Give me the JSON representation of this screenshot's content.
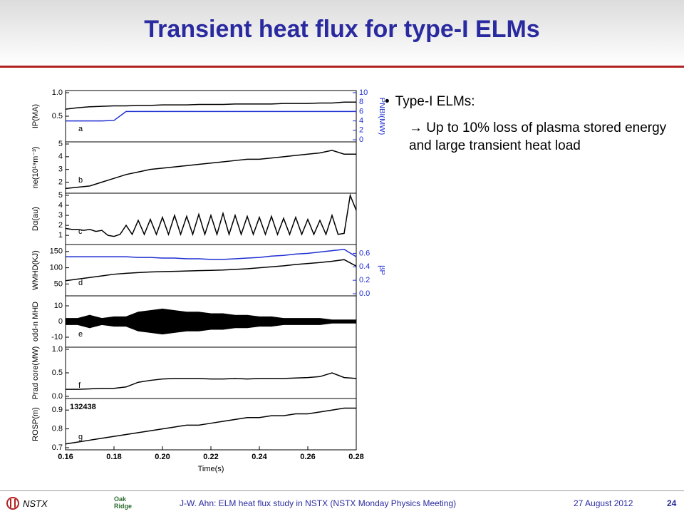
{
  "header": {
    "title": "Transient heat flux for type-I ELMs"
  },
  "bullets": [
    {
      "text": "Type-I ELMs:"
    },
    {
      "text": "→ Up to 10% loss of plasma stored energy and large transient heat load"
    }
  ],
  "footer": {
    "org": "NSTX",
    "logo": "Oak Ridge",
    "citation": "J-W. Ahn: ELM heat flux study in NSTX (NSTX Monday Physics Meeting)",
    "date": "27 August 2012",
    "page": "24"
  },
  "chart_data": [
    {
      "type": "line",
      "ylabel": "IP(MA)",
      "y2label": "PNBI(MW)",
      "annotation": "a",
      "xlim": [
        0.16,
        0.28
      ],
      "ylim": [
        0,
        1
      ],
      "yticks": [
        {
          "value": 1,
          "label": "1.0"
        },
        0.5
      ],
      "y2lim": [
        0,
        10
      ],
      "y2ticks": [
        10,
        8,
        6,
        4,
        2,
        0
      ],
      "x": [
        0.16,
        0.165,
        0.17,
        0.175,
        0.18,
        0.185,
        0.19,
        0.195,
        0.2,
        0.205,
        0.21,
        0.215,
        0.22,
        0.225,
        0.23,
        0.235,
        0.24,
        0.245,
        0.25,
        0.255,
        0.26,
        0.265,
        0.27,
        0.275,
        0.28
      ],
      "series": [
        {
          "color": "#000000",
          "values": [
            0.65,
            0.68,
            0.7,
            0.71,
            0.72,
            0.72,
            0.73,
            0.73,
            0.74,
            0.74,
            0.74,
            0.75,
            0.75,
            0.75,
            0.76,
            0.76,
            0.76,
            0.76,
            0.77,
            0.77,
            0.77,
            0.78,
            0.78,
            0.8,
            0.8
          ]
        },
        {
          "color": "#1f2fd0",
          "axis": "y2",
          "values": [
            4,
            4,
            4,
            4,
            4.1,
            6,
            6,
            6,
            6,
            6,
            6,
            6,
            6,
            6,
            6,
            6,
            6,
            6,
            6,
            6,
            6,
            6,
            6,
            6,
            6
          ]
        }
      ]
    },
    {
      "type": "line",
      "ylabel": "ne(10¹⁹m⁻³)",
      "annotation": "b",
      "xlim": [
        0.16,
        0.28
      ],
      "ylim": [
        1.3,
        5
      ],
      "yticks": [
        5,
        4,
        3,
        2
      ],
      "x": [
        0.16,
        0.165,
        0.17,
        0.175,
        0.18,
        0.185,
        0.19,
        0.195,
        0.2,
        0.205,
        0.21,
        0.215,
        0.22,
        0.225,
        0.23,
        0.235,
        0.24,
        0.245,
        0.25,
        0.255,
        0.26,
        0.265,
        0.27,
        0.275,
        0.28
      ],
      "series": [
        {
          "color": "#000000",
          "values": [
            1.5,
            1.6,
            1.7,
            2.0,
            2.3,
            2.6,
            2.8,
            3.0,
            3.1,
            3.2,
            3.3,
            3.4,
            3.5,
            3.6,
            3.7,
            3.8,
            3.8,
            3.9,
            4.0,
            4.1,
            4.2,
            4.3,
            4.5,
            4.2,
            4.2
          ]
        }
      ]
    },
    {
      "type": "line",
      "ylabel": "Dα(au)",
      "annotation": "c",
      "xlim": [
        0.16,
        0.28
      ],
      "ylim": [
        0.3,
        5
      ],
      "yticks": [
        5,
        4,
        3,
        2,
        1
      ],
      "x": [
        0.16,
        0.1625,
        0.165,
        0.1675,
        0.17,
        0.1725,
        0.175,
        0.1775,
        0.18,
        0.1825,
        0.185,
        0.1875,
        0.19,
        0.1925,
        0.195,
        0.1975,
        0.2,
        0.2025,
        0.205,
        0.2075,
        0.21,
        0.2125,
        0.215,
        0.2175,
        0.22,
        0.2225,
        0.225,
        0.2275,
        0.23,
        0.2325,
        0.235,
        0.2375,
        0.24,
        0.2425,
        0.245,
        0.2475,
        0.25,
        0.2525,
        0.255,
        0.2575,
        0.26,
        0.2625,
        0.265,
        0.2675,
        0.27,
        0.2725,
        0.275,
        0.2775,
        0.28
      ],
      "series": [
        {
          "color": "#000000",
          "values": [
            1.7,
            1.6,
            1.6,
            1.5,
            1.6,
            1.4,
            1.5,
            1.0,
            0.9,
            1.1,
            2.0,
            1.1,
            2.5,
            1.1,
            2.6,
            1.1,
            2.8,
            1.1,
            3.0,
            1.1,
            2.9,
            1.1,
            3.1,
            1.1,
            3.0,
            1.1,
            3.2,
            1.1,
            3.0,
            1.1,
            2.9,
            1.1,
            2.8,
            1.1,
            2.9,
            1.1,
            2.7,
            1.1,
            2.8,
            1.1,
            2.6,
            1.1,
            2.5,
            1.1,
            3.0,
            1.1,
            1.2,
            5.0,
            3.5
          ]
        }
      ]
    },
    {
      "type": "line",
      "ylabel": "WMHD(KJ)",
      "y2label": "βP",
      "annotation": "d",
      "xlim": [
        0.16,
        0.28
      ],
      "ylim": [
        20,
        165
      ],
      "yticks": [
        150,
        100,
        50
      ],
      "y2lim": [
        0,
        0.7
      ],
      "y2ticks": [
        0.6,
        0.4,
        0.2,
        {
          "value": 0,
          "label": "0.0"
        }
      ],
      "x": [
        0.16,
        0.165,
        0.17,
        0.175,
        0.18,
        0.185,
        0.19,
        0.195,
        0.2,
        0.205,
        0.21,
        0.215,
        0.22,
        0.225,
        0.23,
        0.235,
        0.24,
        0.245,
        0.25,
        0.255,
        0.26,
        0.265,
        0.27,
        0.275,
        0.28
      ],
      "series": [
        {
          "color": "#000000",
          "values": [
            60,
            65,
            70,
            75,
            80,
            83,
            85,
            87,
            88,
            89,
            90,
            91,
            92,
            93,
            95,
            97,
            100,
            103,
            106,
            110,
            113,
            116,
            120,
            125,
            105
          ]
        },
        {
          "color": "#1f2fd0",
          "axis": "y2",
          "values": [
            0.55,
            0.55,
            0.55,
            0.55,
            0.55,
            0.55,
            0.54,
            0.54,
            0.53,
            0.53,
            0.52,
            0.52,
            0.51,
            0.51,
            0.52,
            0.53,
            0.54,
            0.56,
            0.57,
            0.59,
            0.6,
            0.62,
            0.64,
            0.66,
            0.55
          ]
        }
      ]
    },
    {
      "type": "range",
      "ylabel": "odd-n MHD",
      "annotation": "e",
      "xlim": [
        0.16,
        0.28
      ],
      "ylim": [
        -15,
        15
      ],
      "yticks": [
        10,
        0,
        -10
      ],
      "x": [
        0.16,
        0.165,
        0.17,
        0.175,
        0.18,
        0.185,
        0.19,
        0.195,
        0.2,
        0.205,
        0.21,
        0.215,
        0.22,
        0.225,
        0.23,
        0.235,
        0.24,
        0.245,
        0.25,
        0.255,
        0.26,
        0.265,
        0.27,
        0.275,
        0.28
      ],
      "series": [
        {
          "color": "#000000",
          "values": [
            2,
            2,
            4,
            2,
            3,
            3,
            6,
            7,
            8,
            7,
            6,
            6,
            5,
            5,
            4,
            4,
            3,
            3,
            2,
            2,
            2,
            2,
            1,
            1,
            1
          ]
        },
        {
          "color": "#000000",
          "values": [
            -2,
            -2,
            -4,
            -2,
            -3,
            -3,
            -6,
            -7,
            -8,
            -7,
            -6,
            -6,
            -5,
            -5,
            -4,
            -4,
            -3,
            -3,
            -2,
            -2,
            -2,
            -2,
            -1,
            -1,
            -1
          ]
        }
      ]
    },
    {
      "type": "line",
      "ylabel": "Prad core(MW)",
      "annotation": "f",
      "xlim": [
        0.16,
        0.28
      ],
      "ylim": [
        0,
        1
      ],
      "yticks": [
        {
          "value": 1,
          "label": "1.0"
        },
        0.5,
        {
          "value": 0,
          "label": "0.0"
        }
      ],
      "x": [
        0.16,
        0.165,
        0.17,
        0.175,
        0.18,
        0.185,
        0.19,
        0.195,
        0.2,
        0.205,
        0.21,
        0.215,
        0.22,
        0.225,
        0.23,
        0.235,
        0.24,
        0.245,
        0.25,
        0.255,
        0.26,
        0.265,
        0.27,
        0.275,
        0.28
      ],
      "series": [
        {
          "color": "#000000",
          "values": [
            0.15,
            0.15,
            0.16,
            0.17,
            0.17,
            0.2,
            0.3,
            0.34,
            0.37,
            0.38,
            0.38,
            0.38,
            0.37,
            0.37,
            0.38,
            0.37,
            0.38,
            0.38,
            0.38,
            0.39,
            0.4,
            0.42,
            0.5,
            0.4,
            0.38
          ]
        }
      ]
    },
    {
      "type": "line",
      "ylabel": "ROSP(m)",
      "annotation": "g",
      "shot": "132438",
      "xlabel": "Time(s)",
      "xlim": [
        0.16,
        0.28
      ],
      "xticks": [
        0.16,
        0.18,
        {
          "value": 0.2,
          "label": "0.20"
        },
        0.22,
        0.24,
        0.26,
        0.28
      ],
      "ylim": [
        0.7,
        0.95
      ],
      "yticks": [
        0.9,
        0.8,
        0.7
      ],
      "x": [
        0.16,
        0.165,
        0.17,
        0.175,
        0.18,
        0.185,
        0.19,
        0.195,
        0.2,
        0.205,
        0.21,
        0.215,
        0.22,
        0.225,
        0.23,
        0.235,
        0.24,
        0.245,
        0.25,
        0.255,
        0.26,
        0.265,
        0.27,
        0.275,
        0.28
      ],
      "series": [
        {
          "color": "#000000",
          "values": [
            0.72,
            0.73,
            0.74,
            0.75,
            0.76,
            0.77,
            0.78,
            0.79,
            0.8,
            0.81,
            0.82,
            0.82,
            0.83,
            0.84,
            0.85,
            0.86,
            0.86,
            0.87,
            0.87,
            0.88,
            0.88,
            0.89,
            0.9,
            0.91,
            0.91
          ]
        }
      ]
    }
  ]
}
